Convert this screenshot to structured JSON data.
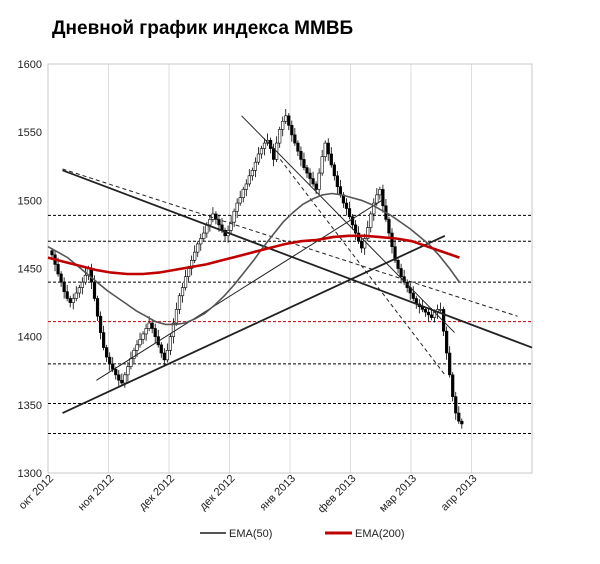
{
  "chart_data": {
    "type": "candlestick",
    "title": "Дневной график индекса ММВБ",
    "ylim": [
      1300,
      1600
    ],
    "yticks": [
      1300,
      1350,
      1400,
      1450,
      1500,
      1550,
      1600
    ],
    "x_tick_labels": [
      "окт 2012",
      "ноя 2012",
      "дек 2012",
      "дек 2012",
      "янв 2013",
      "фев 2013",
      "мар 2013",
      "апр 2013"
    ],
    "legend_position": "bottom",
    "colors": {
      "up": "#ffffff",
      "down": "#000000",
      "ema50": "#555555",
      "ema200": "#c00000",
      "level_red": "#c00000"
    },
    "candles_close": [
      1460,
      1453,
      1446,
      1440,
      1433,
      1428,
      1425,
      1428,
      1432,
      1436,
      1440,
      1445,
      1450,
      1440,
      1428,
      1415,
      1403,
      1392,
      1385,
      1380,
      1376,
      1372,
      1368,
      1366,
      1372,
      1378,
      1384,
      1390,
      1394,
      1398,
      1402,
      1406,
      1410,
      1406,
      1400,
      1394,
      1388,
      1383,
      1390,
      1400,
      1410,
      1420,
      1430,
      1436,
      1444,
      1450,
      1456,
      1462,
      1468,
      1472,
      1476,
      1482,
      1486,
      1490,
      1486,
      1482,
      1478,
      1474,
      1478,
      1484,
      1492,
      1498,
      1502,
      1508,
      1512,
      1518,
      1522,
      1528,
      1534,
      1538,
      1542,
      1544,
      1538,
      1530,
      1542,
      1552,
      1558,
      1562,
      1555,
      1548,
      1542,
      1536,
      1530,
      1524,
      1520,
      1516,
      1512,
      1508,
      1520,
      1532,
      1542,
      1534,
      1526,
      1518,
      1510,
      1504,
      1498,
      1494,
      1488,
      1482,
      1476,
      1470,
      1465,
      1472,
      1480,
      1490,
      1498,
      1504,
      1508,
      1496,
      1486,
      1476,
      1466,
      1456,
      1450,
      1444,
      1440,
      1436,
      1432,
      1428,
      1424,
      1422,
      1420,
      1418,
      1416,
      1414,
      1418,
      1420,
      1420,
      1404,
      1388,
      1372,
      1356,
      1344,
      1338,
      1336
    ],
    "ema50": [
      1466,
      1462,
      1458,
      1452,
      1446,
      1440,
      1434,
      1429,
      1424,
      1419,
      1415,
      1411,
      1409,
      1409,
      1410,
      1413,
      1417,
      1423,
      1430,
      1438,
      1447,
      1456,
      1466,
      1475,
      1484,
      1491,
      1497,
      1501,
      1504,
      1505,
      1504,
      1502,
      1500,
      1497,
      1493,
      1489,
      1484,
      1479,
      1473,
      1467,
      1459,
      1450,
      1440
    ],
    "ema200": [
      1458,
      1455,
      1452,
      1449,
      1447,
      1446,
      1446,
      1447,
      1449,
      1451,
      1453,
      1456,
      1459,
      1462,
      1465,
      1468,
      1470,
      1471,
      1473,
      1474,
      1474,
      1473,
      1472,
      1470,
      1466,
      1462,
      1458
    ],
    "h_levels": [
      {
        "value": 1489,
        "color": "#000000"
      },
      {
        "value": 1470,
        "color": "#000000"
      },
      {
        "value": 1440,
        "color": "#000000"
      },
      {
        "value": 1411,
        "color": "#c00000"
      },
      {
        "value": 1380,
        "color": "#000000"
      },
      {
        "value": 1351,
        "color": "#000000"
      },
      {
        "value": 1329,
        "color": "#000000"
      }
    ],
    "trend_lines": [
      {
        "from": [
          0.03,
          1522
        ],
        "to": [
          1.0,
          1392
        ],
        "style": "solid",
        "width": 1.8
      },
      {
        "from": [
          0.03,
          1344
        ],
        "to": [
          0.82,
          1474
        ],
        "style": "solid",
        "width": 1.8
      },
      {
        "from": [
          0.1,
          1368
        ],
        "to": [
          0.69,
          1500
        ],
        "style": "solid",
        "width": 1.0
      },
      {
        "from": [
          0.4,
          1562
        ],
        "to": [
          0.84,
          1403
        ],
        "style": "solid",
        "width": 1.0
      },
      {
        "from": [
          0.03,
          1523
        ],
        "to": [
          0.97,
          1415
        ],
        "style": "dashed",
        "width": 1.0
      },
      {
        "from": [
          0.48,
          1530
        ],
        "to": [
          0.82,
          1372
        ],
        "style": "dashed",
        "width": 1.0
      }
    ]
  },
  "legend": {
    "ema50_label": "EMA(50)",
    "ema200_label": "EMA(200)"
  }
}
